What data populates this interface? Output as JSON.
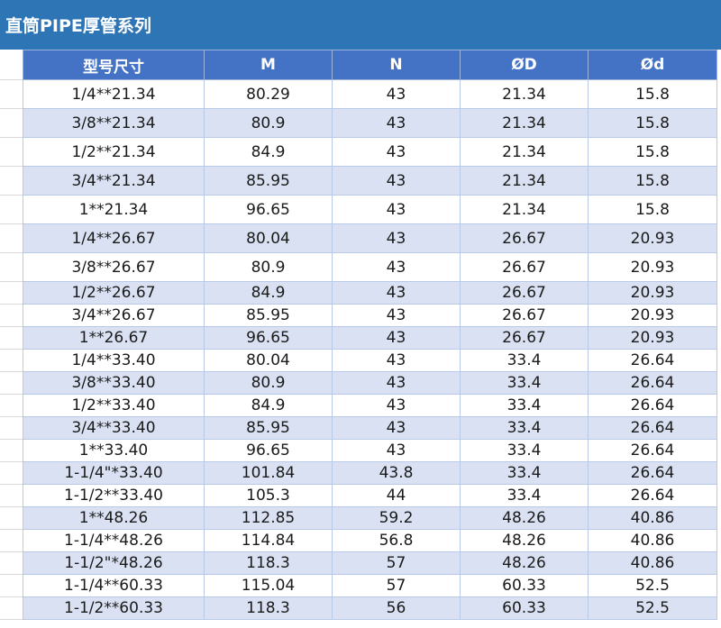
{
  "title": "直筒PIPE厚管系列",
  "colors": {
    "title_bg": "#2e75b6",
    "header_bg": "#4472c4",
    "band_bg": "#d9e1f2",
    "row_bg": "#ffffff"
  },
  "table": {
    "headers": [
      "型号尺寸",
      "M",
      "N",
      "ØD",
      "Ød"
    ],
    "rows": [
      [
        "1/4**21.34",
        "80.29",
        "43",
        "21.34",
        "15.8"
      ],
      [
        "3/8**21.34",
        "80.9",
        "43",
        "21.34",
        "15.8"
      ],
      [
        "1/2**21.34",
        "84.9",
        "43",
        "21.34",
        "15.8"
      ],
      [
        "3/4**21.34",
        "85.95",
        "43",
        "21.34",
        "15.8"
      ],
      [
        "1**21.34",
        "96.65",
        "43",
        "21.34",
        "15.8"
      ],
      [
        "1/4**26.67",
        "80.04",
        "43",
        "26.67",
        "20.93"
      ],
      [
        "3/8**26.67",
        "80.9",
        "43",
        "26.67",
        "20.93"
      ],
      [
        "1/2**26.67",
        "84.9",
        "43",
        "26.67",
        "20.93"
      ],
      [
        "3/4**26.67",
        "85.95",
        "43",
        "26.67",
        "20.93"
      ],
      [
        "1**26.67",
        "96.65",
        "43",
        "26.67",
        "20.93"
      ],
      [
        "1/4**33.40",
        "80.04",
        "43",
        "33.4",
        "26.64"
      ],
      [
        "3/8**33.40",
        "80.9",
        "43",
        "33.4",
        "26.64"
      ],
      [
        "1/2**33.40",
        "84.9",
        "43",
        "33.4",
        "26.64"
      ],
      [
        "3/4**33.40",
        "85.95",
        "43",
        "33.4",
        "26.64"
      ],
      [
        "1**33.40",
        "96.65",
        "43",
        "33.4",
        "26.64"
      ],
      [
        "1-1/4\"*33.40",
        "101.84",
        "43.8",
        "33.4",
        "26.64"
      ],
      [
        "1-1/2**33.40",
        "105.3",
        "44",
        "33.4",
        "26.64"
      ],
      [
        "1**48.26",
        "112.85",
        "59.2",
        "48.26",
        "40.86"
      ],
      [
        "1-1/4**48.26",
        "114.84",
        "56.8",
        "48.26",
        "40.86"
      ],
      [
        "1-1/2\"*48.26",
        "118.3",
        "57",
        "48.26",
        "40.86"
      ],
      [
        "1-1/4**60.33",
        "115.04",
        "57",
        "60.33",
        "52.5"
      ],
      [
        "1-1/2**60.33",
        "118.3",
        "56",
        "60.33",
        "52.5"
      ]
    ]
  }
}
